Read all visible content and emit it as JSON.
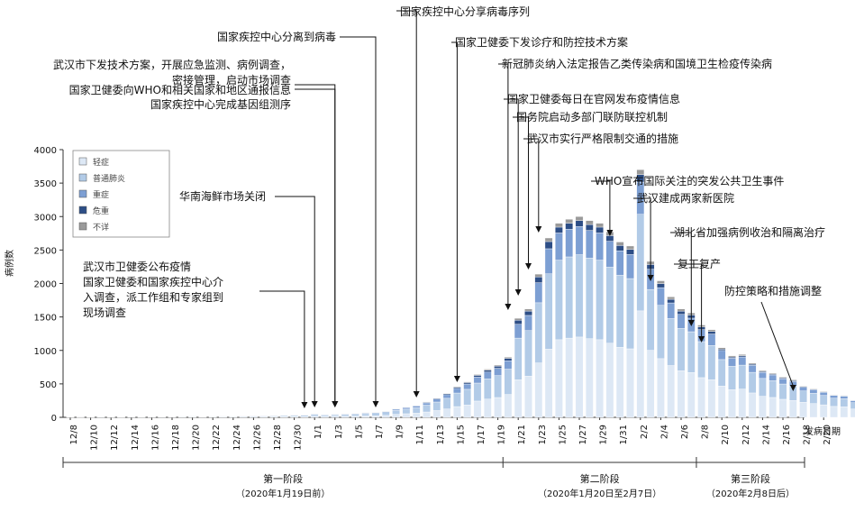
{
  "chart_data": {
    "type": "bar",
    "stacked": true,
    "ylabel": "病例数",
    "xlabel": "发病日期",
    "ylim": [
      0,
      4000
    ],
    "yticks": [
      0,
      500,
      1000,
      1500,
      2000,
      2500,
      3000,
      3500,
      4000
    ],
    "grid": false,
    "legend_placement": "top-left",
    "x_tick_labels": [
      "12/8",
      "12/10",
      "12/12",
      "12/14",
      "12/16",
      "12/18",
      "12/20",
      "12/22",
      "12/24",
      "12/26",
      "12/28",
      "12/30",
      "1/1",
      "1/3",
      "1/5",
      "1/7",
      "1/9",
      "1/11",
      "1/13",
      "1/15",
      "1/17",
      "1/19",
      "1/21",
      "1/23",
      "1/25",
      "1/27",
      "1/29",
      "1/31",
      "2/2",
      "2/4",
      "2/6",
      "2/8",
      "2/10",
      "2/12",
      "2/14",
      "2/16",
      "2/18",
      "2/20"
    ],
    "categories": [
      "12/8",
      "12/9",
      "12/10",
      "12/11",
      "12/12",
      "12/13",
      "12/14",
      "12/15",
      "12/16",
      "12/17",
      "12/18",
      "12/19",
      "12/20",
      "12/21",
      "12/22",
      "12/23",
      "12/24",
      "12/25",
      "12/26",
      "12/27",
      "12/28",
      "12/29",
      "12/30",
      "12/31",
      "1/1",
      "1/2",
      "1/3",
      "1/4",
      "1/5",
      "1/6",
      "1/7",
      "1/8",
      "1/9",
      "1/10",
      "1/11",
      "1/12",
      "1/13",
      "1/14",
      "1/15",
      "1/16",
      "1/17",
      "1/18",
      "1/19",
      "1/20",
      "1/21",
      "1/22",
      "1/23",
      "1/24",
      "1/25",
      "1/26",
      "1/27",
      "1/28",
      "1/29",
      "1/30",
      "1/31",
      "2/1",
      "2/2",
      "2/3",
      "2/4",
      "2/5",
      "2/6",
      "2/7",
      "2/8",
      "2/9",
      "2/10",
      "2/11",
      "2/12",
      "2/13",
      "2/14",
      "2/15",
      "2/16",
      "2/17",
      "2/18",
      "2/19",
      "2/20",
      "2/21"
    ],
    "totals": [
      5,
      3,
      4,
      8,
      6,
      5,
      10,
      6,
      8,
      10,
      12,
      14,
      15,
      12,
      14,
      16,
      18,
      20,
      22,
      25,
      27,
      30,
      35,
      40,
      55,
      45,
      50,
      55,
      60,
      70,
      75,
      90,
      130,
      155,
      180,
      230,
      290,
      360,
      460,
      530,
      640,
      720,
      780,
      900,
      1480,
      1620,
      2140,
      2680,
      2900,
      2960,
      3000,
      2940,
      2900,
      2770,
      2620,
      2560,
      3700,
      2330,
      2040,
      1800,
      1620,
      1560,
      1380,
      1310,
      1040,
      920,
      940,
      810,
      700,
      660,
      600,
      560,
      470,
      430,
      390,
      340,
      330,
      260,
      160,
      120
    ],
    "series": [
      {
        "name": "轻症",
        "color": "#dde8f5",
        "shares": [
          0.27,
          0.29,
          0.31,
          0.33,
          0.35,
          0.38,
          0.4,
          0.43,
          0.45,
          0.48
        ]
      },
      {
        "name": "普通肺炎",
        "color": "#b2cbe7",
        "shares": [
          0.48,
          0.47,
          0.46,
          0.45,
          0.44,
          0.42,
          0.41,
          0.39,
          0.38,
          0.36
        ]
      },
      {
        "name": "重症",
        "color": "#7d9fd3",
        "shares": [
          0.17,
          0.16,
          0.16,
          0.15,
          0.15,
          0.14,
          0.14,
          0.13,
          0.13,
          0.12
        ]
      },
      {
        "name": "危重",
        "color": "#2d4e86",
        "shares": [
          0.06,
          0.06,
          0.05,
          0.05,
          0.04,
          0.04,
          0.03,
          0.03,
          0.02,
          0.02
        ]
      },
      {
        "name": "不详",
        "color": "#9a9a9a",
        "shares": [
          0.02,
          0.02,
          0.02,
          0.02,
          0.02,
          0.02,
          0.02,
          0.02,
          0.02,
          0.02
        ]
      }
    ],
    "annotations": [
      {
        "lines": [
          "武汉市卫健委公布疫情",
          "国家卫健委和国家疾控中心介",
          "入调查，派工作组和专家组到",
          "现场调查"
        ],
        "date": "12/31"
      },
      {
        "lines": [
          "华南海鲜市场关闭"
        ],
        "date": "1/1"
      },
      {
        "lines": [
          "武汉市下发技术方案，开展应急监测、病例调查，",
          "密接管理，启动市场调查"
        ],
        "date": "1/3"
      },
      {
        "lines": [
          "国家卫健委向WHO和相关国家和地区通报信息"
        ],
        "date": "1/3"
      },
      {
        "lines": [
          "国家疾控中心完成基因组测序"
        ],
        "date": "1/3"
      },
      {
        "lines": [
          "国家疾控中心分离到病毒"
        ],
        "date": "1/7"
      },
      {
        "lines": [
          "国家疾控中心分享病毒序列"
        ],
        "date": "1/11"
      },
      {
        "lines": [
          "国家卫健委下发诊疗和防控技术方案"
        ],
        "date": "1/15"
      },
      {
        "lines": [
          "新冠肺炎纳入法定报告乙类传染病和国境卫生检疫传染病"
        ],
        "date": "1/20"
      },
      {
        "lines": [
          "国家卫健委每日在官网发布疫情信息"
        ],
        "date": "1/21"
      },
      {
        "lines": [
          "国务院启动多部门联防联控机制"
        ],
        "date": "1/22"
      },
      {
        "lines": [
          "武汉市实行严格限制交通的措施"
        ],
        "date": "1/23"
      },
      {
        "lines": [
          "WHO宣布国际关注的突发公共卫生事件"
        ],
        "date": "1/30"
      },
      {
        "lines": [
          "武汉建成两家新医院"
        ],
        "date": "2/3"
      },
      {
        "lines": [
          "湖北省加强病例收治和隔离治疗"
        ],
        "date": "2/7"
      },
      {
        "lines": [
          "复工复产"
        ],
        "date": "2/8"
      },
      {
        "lines": [
          "防控策略和措施调整"
        ],
        "date": "2/17"
      }
    ],
    "phases": [
      {
        "label": "第一阶段",
        "sub": "（2020年1月19日前）",
        "start": "12/8",
        "end": "1/19"
      },
      {
        "label": "第二阶段",
        "sub": "（2020年1月20日至2月7日）",
        "start": "1/20",
        "end": "2/7"
      },
      {
        "label": "第三阶段",
        "sub": "（2020年2月8日后）",
        "start": "2/8",
        "end": "2/21"
      }
    ]
  }
}
